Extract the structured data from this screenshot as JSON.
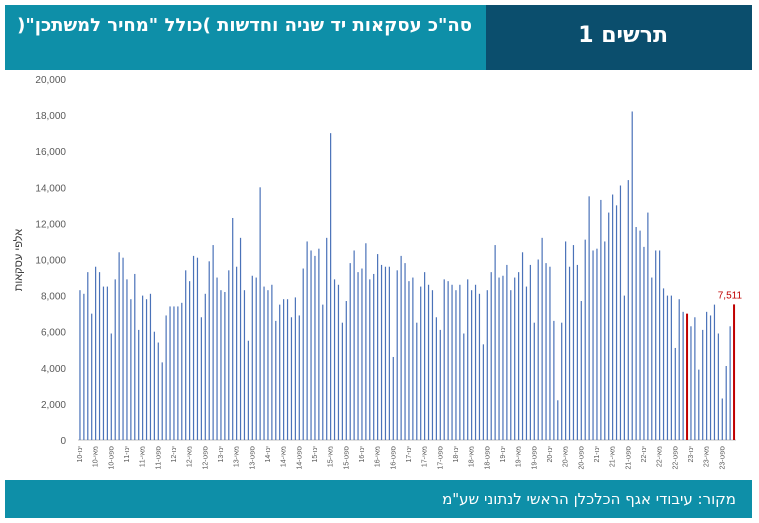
{
  "header": {
    "title": "סה\"כ עסקאות יד שניה וחדשות )כולל \"מחיר למשתכן\"(",
    "figure_label": "תרשים 1"
  },
  "footer": {
    "source": "מקור: עיבודי אגף הכלכלן הראשי לנתוני שע\"מ"
  },
  "colors": {
    "header_left": "#0e8fa8",
    "header_right": "#0b4e6d",
    "bar": "#4a72b8",
    "highlight_bar": "#c00000",
    "callout": "#c00000"
  },
  "chart_data": {
    "type": "bar",
    "ylabel": "אלפי עסקאות",
    "ylim": [
      0,
      20000
    ],
    "yticks": [
      "0",
      "2,000",
      "4,000",
      "6,000",
      "8,000",
      "10,000",
      "12,000",
      "14,000",
      "16,000",
      "18,000",
      "20,000"
    ],
    "xticks": [
      "10-ינו",
      "10-מאי",
      "10-ספט",
      "11-ינו",
      "11-מאי",
      "11-ספט",
      "12-ינו",
      "12-מאי",
      "12-ספט",
      "13-ינו",
      "13-מאי",
      "13-ספט",
      "14-ינו",
      "14-מאי",
      "14-ספט",
      "15-ינו",
      "15-מאי",
      "15-ספט",
      "16-ינו",
      "16-מאי",
      "16-ספט",
      "17-ינו",
      "17-מאי",
      "17-ספט",
      "18-ינו",
      "18-מאי",
      "18-ספט",
      "19-ינו",
      "19-מאי",
      "19-ספט",
      "20-ינו",
      "20-מאי",
      "20-ספט",
      "21-ינו",
      "21-מאי",
      "21-ספט",
      "22-ינו",
      "22-מאי",
      "22-ספט",
      "23-ינו",
      "23-מאי",
      "23-ספט"
    ],
    "values": [
      8300,
      8100,
      9300,
      7000,
      9600,
      9300,
      8500,
      8500,
      5900,
      8900,
      10400,
      10100,
      8900,
      7800,
      9200,
      6100,
      8000,
      7800,
      8100,
      6000,
      5400,
      4300,
      6900,
      7400,
      7400,
      7400,
      7600,
      9400,
      8800,
      10200,
      10100,
      6800,
      8100,
      9900,
      10800,
      9000,
      8300,
      8200,
      9400,
      12300,
      9600,
      11200,
      8300,
      5500,
      9100,
      9000,
      14000,
      8500,
      8300,
      8600,
      6600,
      7500,
      7800,
      7800,
      6800,
      7900,
      6900,
      9500,
      11000,
      10500,
      10200,
      10600,
      7500,
      11200,
      17000,
      8900,
      8600,
      6500,
      7700,
      9800,
      10500,
      9300,
      9500,
      10900,
      8900,
      9200,
      10300,
      9700,
      9600,
      9600,
      4600,
      9400,
      10200,
      9800,
      8800,
      9000,
      6500,
      8500,
      9300,
      8600,
      8300,
      6800,
      6100,
      8900,
      8800,
      8600,
      8300,
      8600,
      5900,
      8900,
      8300,
      8600,
      8100,
      5300,
      8300,
      9300,
      10800,
      9000,
      9100,
      9700,
      8300,
      9000,
      9300,
      10400,
      8500,
      9700,
      6500,
      10000,
      11200,
      9800,
      9600,
      6600,
      2200,
      6500,
      11000,
      9600,
      10800,
      9700,
      7700,
      11100,
      13500,
      10500,
      10600,
      13300,
      11000,
      12600,
      13600,
      13000,
      14100,
      8000,
      14400,
      18200,
      11800,
      11600,
      10700,
      12600,
      9000,
      10500,
      10500,
      8400,
      8000,
      8000,
      5100,
      7800,
      7100,
      7000,
      6300,
      6800,
      3900,
      6100,
      7100,
      6900,
      7500,
      5900,
      2300,
      4100,
      6300,
      7511
    ],
    "highlight_index": 155,
    "callout_label": "7,511",
    "grid": false,
    "legend": "none"
  }
}
